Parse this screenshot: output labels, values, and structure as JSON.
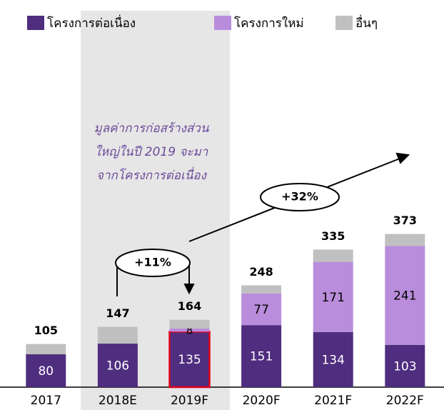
{
  "chart_data": {
    "type": "stacked-bar",
    "categories": [
      "2017",
      "2018E",
      "2019F",
      "2020F",
      "2021F",
      "2022F"
    ],
    "series": [
      {
        "name": "โครงการต่อเนื่อง",
        "color": "#4f2d7f",
        "values": [
          80,
          106,
          135,
          151,
          134,
          103
        ]
      },
      {
        "name": "โครงการใหม่",
        "color": "#b98ddb",
        "values": [
          null,
          null,
          8,
          77,
          171,
          241
        ]
      },
      {
        "name": "อื่นๆ",
        "color": "#c0c0c0",
        "values": [
          25,
          41,
          21,
          20,
          30,
          29
        ]
      }
    ],
    "labeled_series": [
      0,
      1
    ],
    "totals": [
      105,
      147,
      164,
      248,
      335,
      373
    ],
    "ylim": [
      0,
      400
    ],
    "highlight_index": 2,
    "annotations": [
      "มูลค่าการก่อสร้างส่วน",
      "ใหญ่ในปี 2019 จะมา",
      "จากโครงการต่อเนื่อง"
    ],
    "growth_labels": [
      "+11%",
      "+32%"
    ]
  }
}
